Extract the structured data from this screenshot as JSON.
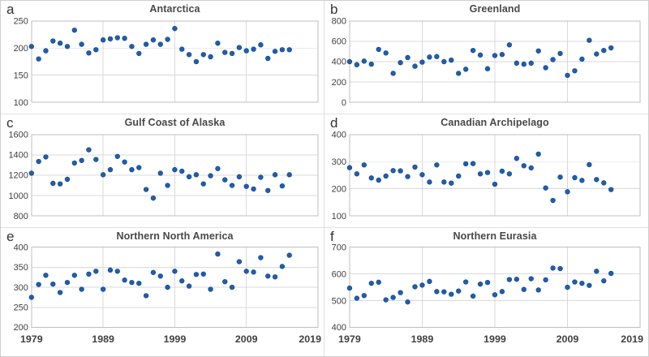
{
  "figure": {
    "background": "#FFFFFF",
    "outer_border_color": "#CFCFCF",
    "panel_divider_color": "#E0E0E0"
  },
  "chart_data": {
    "type": "scatter",
    "layout_hint": "6 panels, 2 columns x 3 rows, shared x axis 1979-2019, gridlines on, no legend",
    "colors": {
      "marker_fill": "#1F5FB0",
      "marker_edge": "#174A8C",
      "gridline": "#D9D9D9",
      "plot_border": "#BFBFBF",
      "tick_label": "#404040",
      "title": "#484848"
    },
    "xlim": [
      1979,
      2019
    ],
    "xticks": [
      1979,
      1989,
      1999,
      2009,
      2019
    ],
    "x": [
      1979,
      1980,
      1981,
      1982,
      1983,
      1984,
      1985,
      1986,
      1987,
      1988,
      1989,
      1990,
      1991,
      1992,
      1993,
      1994,
      1995,
      1996,
      1997,
      1998,
      1999,
      2000,
      2001,
      2002,
      2003,
      2004,
      2005,
      2006,
      2007,
      2008,
      2009,
      2010,
      2011,
      2012,
      2013,
      2014,
      2015
    ],
    "panels": [
      {
        "letter": "a",
        "title": "Antarctica",
        "ylim": [
          100,
          250
        ],
        "yticks": [
          100,
          150,
          200,
          250
        ],
        "values": [
          203,
          180,
          195,
          213,
          209,
          203,
          233,
          207,
          191,
          197,
          215,
          217,
          219,
          218,
          203,
          190,
          207,
          215,
          207,
          216,
          236,
          198,
          188,
          175,
          188,
          184,
          209,
          192,
          190,
          201,
          195,
          198,
          206,
          181,
          194,
          197,
          197
        ]
      },
      {
        "letter": "b",
        "title": "Greenland",
        "ylim": [
          0,
          800
        ],
        "yticks": [
          0,
          200,
          400,
          600,
          800
        ],
        "values": [
          400,
          370,
          405,
          375,
          520,
          485,
          285,
          390,
          440,
          355,
          395,
          445,
          450,
          400,
          415,
          285,
          325,
          510,
          465,
          330,
          460,
          470,
          565,
          385,
          375,
          385,
          505,
          340,
          420,
          480,
          265,
          310,
          425,
          610,
          475,
          510,
          535
        ]
      },
      {
        "letter": "c",
        "title": "Gulf Coast of Alaska",
        "ylim": [
          800,
          1600
        ],
        "yticks": [
          800,
          1000,
          1200,
          1400,
          1600
        ],
        "values": [
          1220,
          1335,
          1380,
          1120,
          1115,
          1160,
          1320,
          1345,
          1450,
          1355,
          1205,
          1255,
          1385,
          1330,
          1255,
          1275,
          1060,
          975,
          1220,
          1100,
          1255,
          1240,
          1185,
          1205,
          1115,
          1195,
          1265,
          1155,
          1100,
          1185,
          1090,
          1065,
          1180,
          1050,
          1205,
          1095,
          1205
        ]
      },
      {
        "letter": "d",
        "title": "Canadian Archipelago",
        "ylim": [
          100,
          400
        ],
        "yticks": [
          100,
          200,
          300,
          400
        ],
        "values": [
          278,
          255,
          288,
          240,
          232,
          247,
          267,
          266,
          245,
          280,
          252,
          225,
          288,
          225,
          221,
          247,
          292,
          293,
          255,
          260,
          217,
          265,
          255,
          312,
          285,
          277,
          328,
          203,
          157,
          243,
          189,
          241,
          231,
          289,
          234,
          222,
          197
        ]
      },
      {
        "letter": "e",
        "title": "Northern North America",
        "ylim": [
          200,
          400
        ],
        "yticks": [
          200,
          250,
          300,
          350,
          400
        ],
        "values": [
          275,
          307,
          330,
          308,
          287,
          312,
          330,
          295,
          333,
          340,
          295,
          343,
          340,
          318,
          312,
          310,
          279,
          337,
          328,
          300,
          340,
          316,
          303,
          332,
          333,
          295,
          383,
          314,
          300,
          364,
          340,
          338,
          374,
          328,
          326,
          352,
          380
        ]
      },
      {
        "letter": "f",
        "title": "Northern Eurasia",
        "ylim": [
          400,
          700
        ],
        "yticks": [
          400,
          500,
          600,
          700
        ],
        "values": [
          547,
          509,
          519,
          565,
          569,
          503,
          512,
          530,
          495,
          552,
          558,
          572,
          534,
          533,
          524,
          536,
          570,
          517,
          562,
          568,
          522,
          534,
          579,
          580,
          542,
          582,
          540,
          578,
          622,
          620,
          550,
          570,
          565,
          557,
          610,
          574,
          602
        ]
      }
    ]
  }
}
